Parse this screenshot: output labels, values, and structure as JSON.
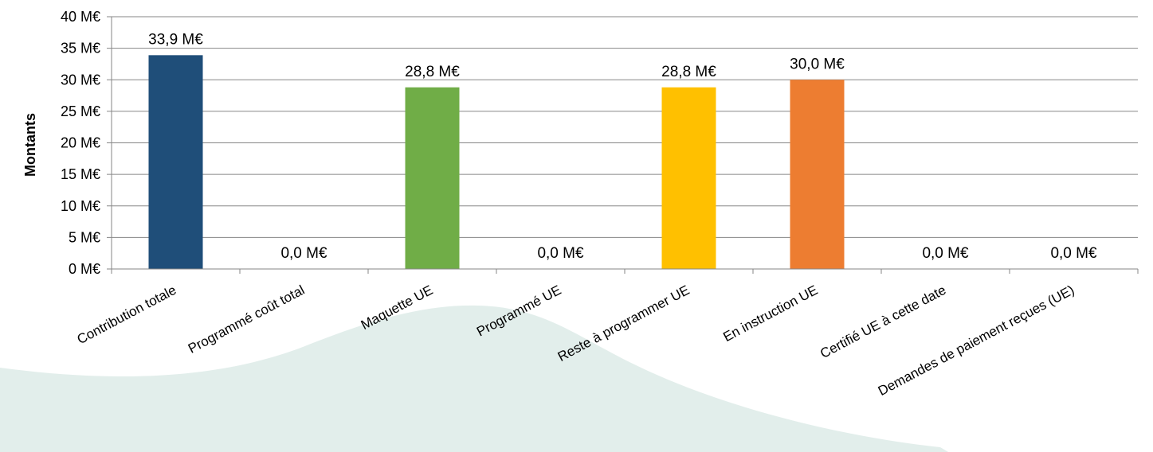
{
  "chart_data": {
    "type": "bar",
    "title": "",
    "xlabel": "",
    "ylabel": "Montants",
    "unit": "M€",
    "ylim": [
      0,
      40
    ],
    "yticks": [
      0,
      5,
      10,
      15,
      20,
      25,
      30,
      35,
      40
    ],
    "ytick_labels": [
      "0 M€",
      "5 M€",
      "10 M€",
      "15 M€",
      "20 M€",
      "25 M€",
      "30 M€",
      "35 M€",
      "40 M€"
    ],
    "grid": true,
    "legend": "none",
    "categories": [
      "Contribution totale",
      "Programmé coût total",
      "Maquette UE",
      "Programmé UE",
      "Reste à programmer UE",
      "En instruction UE",
      "Certifié UE à cette date",
      "Demandes de paiement reçues (UE)"
    ],
    "values": [
      33.9,
      0.0,
      28.8,
      0.0,
      28.8,
      30.0,
      0.0,
      0.0
    ],
    "data_labels": [
      "33,9 M€",
      "0,0 M€",
      "28,8 M€",
      "0,0 M€",
      "28,8 M€",
      "30,0 M€",
      "0,0 M€",
      "0,0 M€"
    ],
    "colors": [
      "#1f4e79",
      "#4472c4",
      "#70ad47",
      "#5b9bd5",
      "#ffc000",
      "#ed7d31",
      "#a5a5a5",
      "#264478"
    ],
    "background_shape_color": "#e2eeeb",
    "grid_color": "#868686"
  }
}
